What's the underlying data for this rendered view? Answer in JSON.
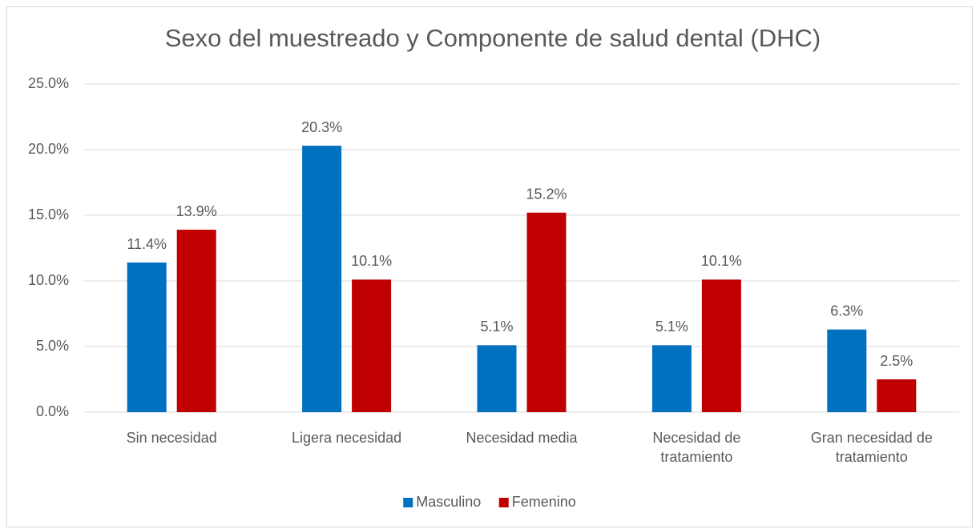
{
  "chart_data": {
    "type": "bar",
    "title": "Sexo del muestreado y Componente de salud dental (DHC)",
    "categories": [
      "Sin necesidad",
      "Ligera necesidad",
      "Necesidad media",
      "Necesidad de tratamiento",
      "Gran necesidad de tratamiento"
    ],
    "series": [
      {
        "name": "Masculino",
        "color": "#0070c0",
        "values": [
          11.4,
          20.3,
          5.1,
          5.1,
          6.3
        ],
        "value_labels": [
          "11.4%",
          "20.3%",
          "5.1%",
          "5.1%",
          "6.3%"
        ]
      },
      {
        "name": "Femenino",
        "color": "#c00000",
        "values": [
          13.9,
          10.1,
          15.2,
          10.1,
          2.5
        ],
        "value_labels": [
          "13.9%",
          "10.1%",
          "15.2%",
          "10.1%",
          "2.5%"
        ]
      }
    ],
    "ylim": [
      0,
      25
    ],
    "yticks": [
      {
        "value": 0,
        "label": "0.0%"
      },
      {
        "value": 5,
        "label": "5.0%"
      },
      {
        "value": 10,
        "label": "10.0%"
      },
      {
        "value": 15,
        "label": "15.0%"
      },
      {
        "value": 20,
        "label": "20.0%"
      },
      {
        "value": 25,
        "label": "25.0%"
      }
    ],
    "grid": true,
    "legend": "bottom"
  }
}
